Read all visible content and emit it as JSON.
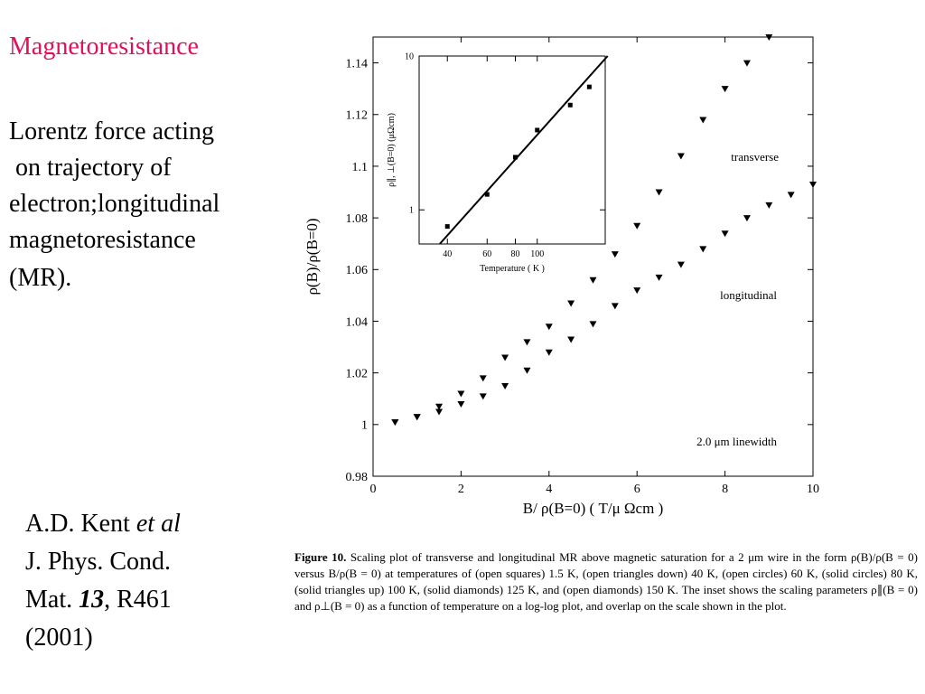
{
  "slide": {
    "title": "Magnetoresistance",
    "body": [
      "Lorentz force acting",
      " on trajectory of",
      "electron;longitudinal",
      "magnetoresistance",
      "(MR)."
    ],
    "citation": {
      "author": "A.D. Kent ",
      "etal": "et al",
      "journal1": "J. Phys. Cond.",
      "journal2": "Mat. ",
      "volume": "13",
      "pages": ", R461",
      "year": "(2001)"
    },
    "caption": {
      "label": "Figure 10.",
      "text": " Scaling plot of transverse and longitudinal MR above magnetic saturation for a 2 μm wire in the form ρ(B)/ρ(B = 0) versus B/ρ(B = 0) at temperatures of (open squares) 1.5 K, (open triangles down) 40 K, (open circles) 60 K, (solid circles) 80 K, (solid triangles up) 100 K, (solid diamonds) 125 K, and (open diamonds) 150 K. The inset shows the scaling parameters ρ∥(B = 0) and ρ⊥(B = 0) as a function of temperature on a log-log plot, and overlap on the scale shown in the plot."
    }
  },
  "chart_data": [
    {
      "type": "scatter",
      "xlabel": "B/ ρ(B=0) ( T/μ  Ωcm )",
      "ylabel": "ρ(B)/ρ(B=0)",
      "xlim": [
        0,
        10
      ],
      "ylim": [
        0.98,
        1.15
      ],
      "xticks": [
        0,
        2,
        4,
        6,
        8,
        10
      ],
      "yticks": [
        0.98,
        1,
        1.02,
        1.04,
        1.06,
        1.08,
        1.1,
        1.12,
        1.14
      ],
      "annotations": [
        "2.0 μm linewidth"
      ],
      "series": [
        {
          "name": "transverse",
          "color": "#000000",
          "x": [
            0.5,
            1,
            1.5,
            2,
            2.5,
            3,
            3.5,
            4,
            4.5,
            5,
            5.5,
            6,
            6.5,
            7,
            7.5,
            8,
            8.5,
            9
          ],
          "values": [
            1.001,
            1.003,
            1.007,
            1.012,
            1.018,
            1.026,
            1.032,
            1.038,
            1.047,
            1.056,
            1.066,
            1.077,
            1.09,
            1.104,
            1.118,
            1.13,
            1.14,
            1.15
          ]
        },
        {
          "name": "longitudinal",
          "color": "#000000",
          "x": [
            0.5,
            1,
            1.5,
            2,
            2.5,
            3,
            3.5,
            4,
            4.5,
            5,
            5.5,
            6,
            6.5,
            7,
            7.5,
            8,
            8.5,
            9,
            9.5,
            10
          ],
          "values": [
            1.001,
            1.003,
            1.005,
            1.008,
            1.011,
            1.015,
            1.021,
            1.028,
            1.033,
            1.039,
            1.046,
            1.052,
            1.057,
            1.062,
            1.068,
            1.074,
            1.08,
            1.085,
            1.089,
            1.093
          ]
        }
      ]
    },
    {
      "type": "line",
      "xlabel": "Temperature ( K )",
      "ylabel": "ρ∥, ⊥(B=0) (μΩcm)",
      "log_x": true,
      "log_y": true,
      "xlim": [
        30,
        200
      ],
      "ylim": [
        0.6,
        10
      ],
      "xticks": [
        40,
        60,
        80,
        100
      ],
      "yticks": [
        1,
        10
      ],
      "series": [
        {
          "color": "#000000",
          "x": [
            40,
            60,
            80,
            100,
            140,
            170
          ],
          "values": [
            0.78,
            1.26,
            2.2,
            3.3,
            4.8,
            6.3
          ]
        }
      ],
      "fit": {
        "x": [
          37,
          205
        ],
        "values": [
          0.6,
          10
        ]
      }
    }
  ]
}
